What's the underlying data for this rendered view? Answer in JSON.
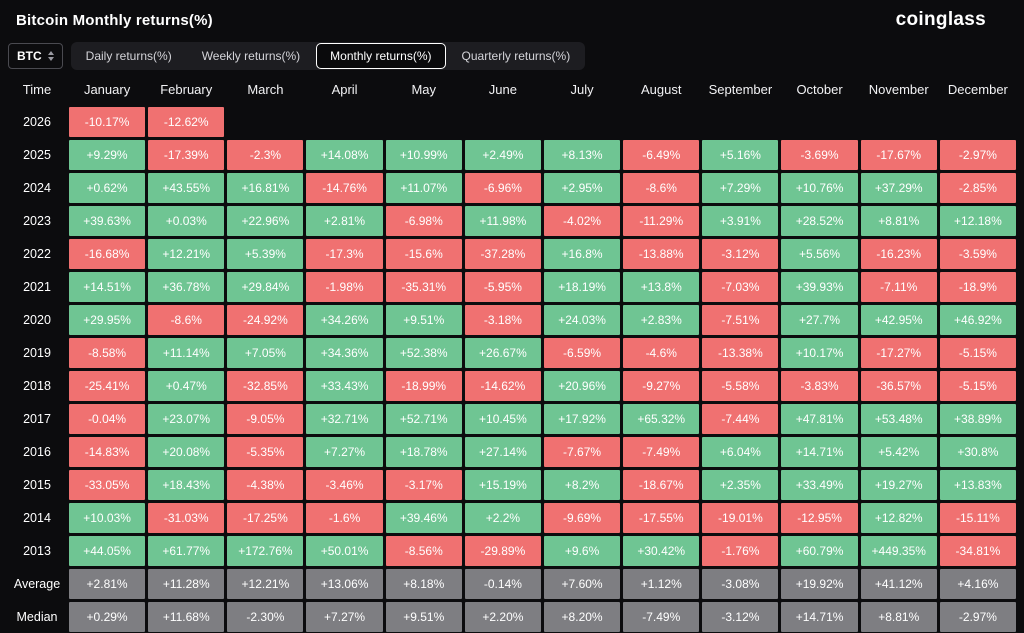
{
  "header": {
    "title": "Bitcoin Monthly returns(%)",
    "logo": "coinglass"
  },
  "controls": {
    "symbol": "BTC",
    "tabs": [
      {
        "id": "daily",
        "label": "Daily returns(%)",
        "active": false
      },
      {
        "id": "weekly",
        "label": "Weekly returns(%)",
        "active": false
      },
      {
        "id": "monthly",
        "label": "Monthly returns(%)",
        "active": true
      },
      {
        "id": "quarterly",
        "label": "Quarterly returns(%)",
        "active": false
      }
    ]
  },
  "chart_data": {
    "type": "heatmap",
    "title": "Bitcoin Monthly returns(%)",
    "columns": [
      "Time",
      "January",
      "February",
      "March",
      "April",
      "May",
      "June",
      "July",
      "August",
      "September",
      "October",
      "November",
      "December"
    ],
    "colors": {
      "positive": "#6fc593",
      "negative": "#f07171",
      "summary": "#7e7e82"
    },
    "rows": [
      {
        "label": "2026",
        "summary": false,
        "values": [
          "-10.17%",
          "-12.62%",
          "",
          "",
          "",
          "",
          "",
          "",
          "",
          "",
          "",
          ""
        ]
      },
      {
        "label": "2025",
        "summary": false,
        "values": [
          "+9.29%",
          "-17.39%",
          "-2.3%",
          "+14.08%",
          "+10.99%",
          "+2.49%",
          "+8.13%",
          "-6.49%",
          "+5.16%",
          "-3.69%",
          "-17.67%",
          "-2.97%"
        ]
      },
      {
        "label": "2024",
        "summary": false,
        "values": [
          "+0.62%",
          "+43.55%",
          "+16.81%",
          "-14.76%",
          "+11.07%",
          "-6.96%",
          "+2.95%",
          "-8.6%",
          "+7.29%",
          "+10.76%",
          "+37.29%",
          "-2.85%"
        ]
      },
      {
        "label": "2023",
        "summary": false,
        "values": [
          "+39.63%",
          "+0.03%",
          "+22.96%",
          "+2.81%",
          "-6.98%",
          "+11.98%",
          "-4.02%",
          "-11.29%",
          "+3.91%",
          "+28.52%",
          "+8.81%",
          "+12.18%"
        ]
      },
      {
        "label": "2022",
        "summary": false,
        "values": [
          "-16.68%",
          "+12.21%",
          "+5.39%",
          "-17.3%",
          "-15.6%",
          "-37.28%",
          "+16.8%",
          "-13.88%",
          "-3.12%",
          "+5.56%",
          "-16.23%",
          "-3.59%"
        ]
      },
      {
        "label": "2021",
        "summary": false,
        "values": [
          "+14.51%",
          "+36.78%",
          "+29.84%",
          "-1.98%",
          "-35.31%",
          "-5.95%",
          "+18.19%",
          "+13.8%",
          "-7.03%",
          "+39.93%",
          "-7.11%",
          "-18.9%"
        ]
      },
      {
        "label": "2020",
        "summary": false,
        "values": [
          "+29.95%",
          "-8.6%",
          "-24.92%",
          "+34.26%",
          "+9.51%",
          "-3.18%",
          "+24.03%",
          "+2.83%",
          "-7.51%",
          "+27.7%",
          "+42.95%",
          "+46.92%"
        ]
      },
      {
        "label": "2019",
        "summary": false,
        "values": [
          "-8.58%",
          "+11.14%",
          "+7.05%",
          "+34.36%",
          "+52.38%",
          "+26.67%",
          "-6.59%",
          "-4.6%",
          "-13.38%",
          "+10.17%",
          "-17.27%",
          "-5.15%"
        ]
      },
      {
        "label": "2018",
        "summary": false,
        "values": [
          "-25.41%",
          "+0.47%",
          "-32.85%",
          "+33.43%",
          "-18.99%",
          "-14.62%",
          "+20.96%",
          "-9.27%",
          "-5.58%",
          "-3.83%",
          "-36.57%",
          "-5.15%"
        ]
      },
      {
        "label": "2017",
        "summary": false,
        "values": [
          "-0.04%",
          "+23.07%",
          "-9.05%",
          "+32.71%",
          "+52.71%",
          "+10.45%",
          "+17.92%",
          "+65.32%",
          "-7.44%",
          "+47.81%",
          "+53.48%",
          "+38.89%"
        ]
      },
      {
        "label": "2016",
        "summary": false,
        "values": [
          "-14.83%",
          "+20.08%",
          "-5.35%",
          "+7.27%",
          "+18.78%",
          "+27.14%",
          "-7.67%",
          "-7.49%",
          "+6.04%",
          "+14.71%",
          "+5.42%",
          "+30.8%"
        ]
      },
      {
        "label": "2015",
        "summary": false,
        "values": [
          "-33.05%",
          "+18.43%",
          "-4.38%",
          "-3.46%",
          "-3.17%",
          "+15.19%",
          "+8.2%",
          "-18.67%",
          "+2.35%",
          "+33.49%",
          "+19.27%",
          "+13.83%"
        ]
      },
      {
        "label": "2014",
        "summary": false,
        "values": [
          "+10.03%",
          "-31.03%",
          "-17.25%",
          "-1.6%",
          "+39.46%",
          "+2.2%",
          "-9.69%",
          "-17.55%",
          "-19.01%",
          "-12.95%",
          "+12.82%",
          "-15.11%"
        ]
      },
      {
        "label": "2013",
        "summary": false,
        "values": [
          "+44.05%",
          "+61.77%",
          "+172.76%",
          "+50.01%",
          "-8.56%",
          "-29.89%",
          "+9.6%",
          "+30.42%",
          "-1.76%",
          "+60.79%",
          "+449.35%",
          "-34.81%"
        ]
      },
      {
        "label": "Average",
        "summary": true,
        "values": [
          "+2.81%",
          "+11.28%",
          "+12.21%",
          "+13.06%",
          "+8.18%",
          "-0.14%",
          "+7.60%",
          "+1.12%",
          "-3.08%",
          "+19.92%",
          "+41.12%",
          "+4.16%"
        ]
      },
      {
        "label": "Median",
        "summary": true,
        "values": [
          "+0.29%",
          "+11.68%",
          "-2.30%",
          "+7.27%",
          "+9.51%",
          "+2.20%",
          "+8.20%",
          "-7.49%",
          "-3.12%",
          "+14.71%",
          "+8.81%",
          "-2.97%"
        ]
      }
    ]
  }
}
